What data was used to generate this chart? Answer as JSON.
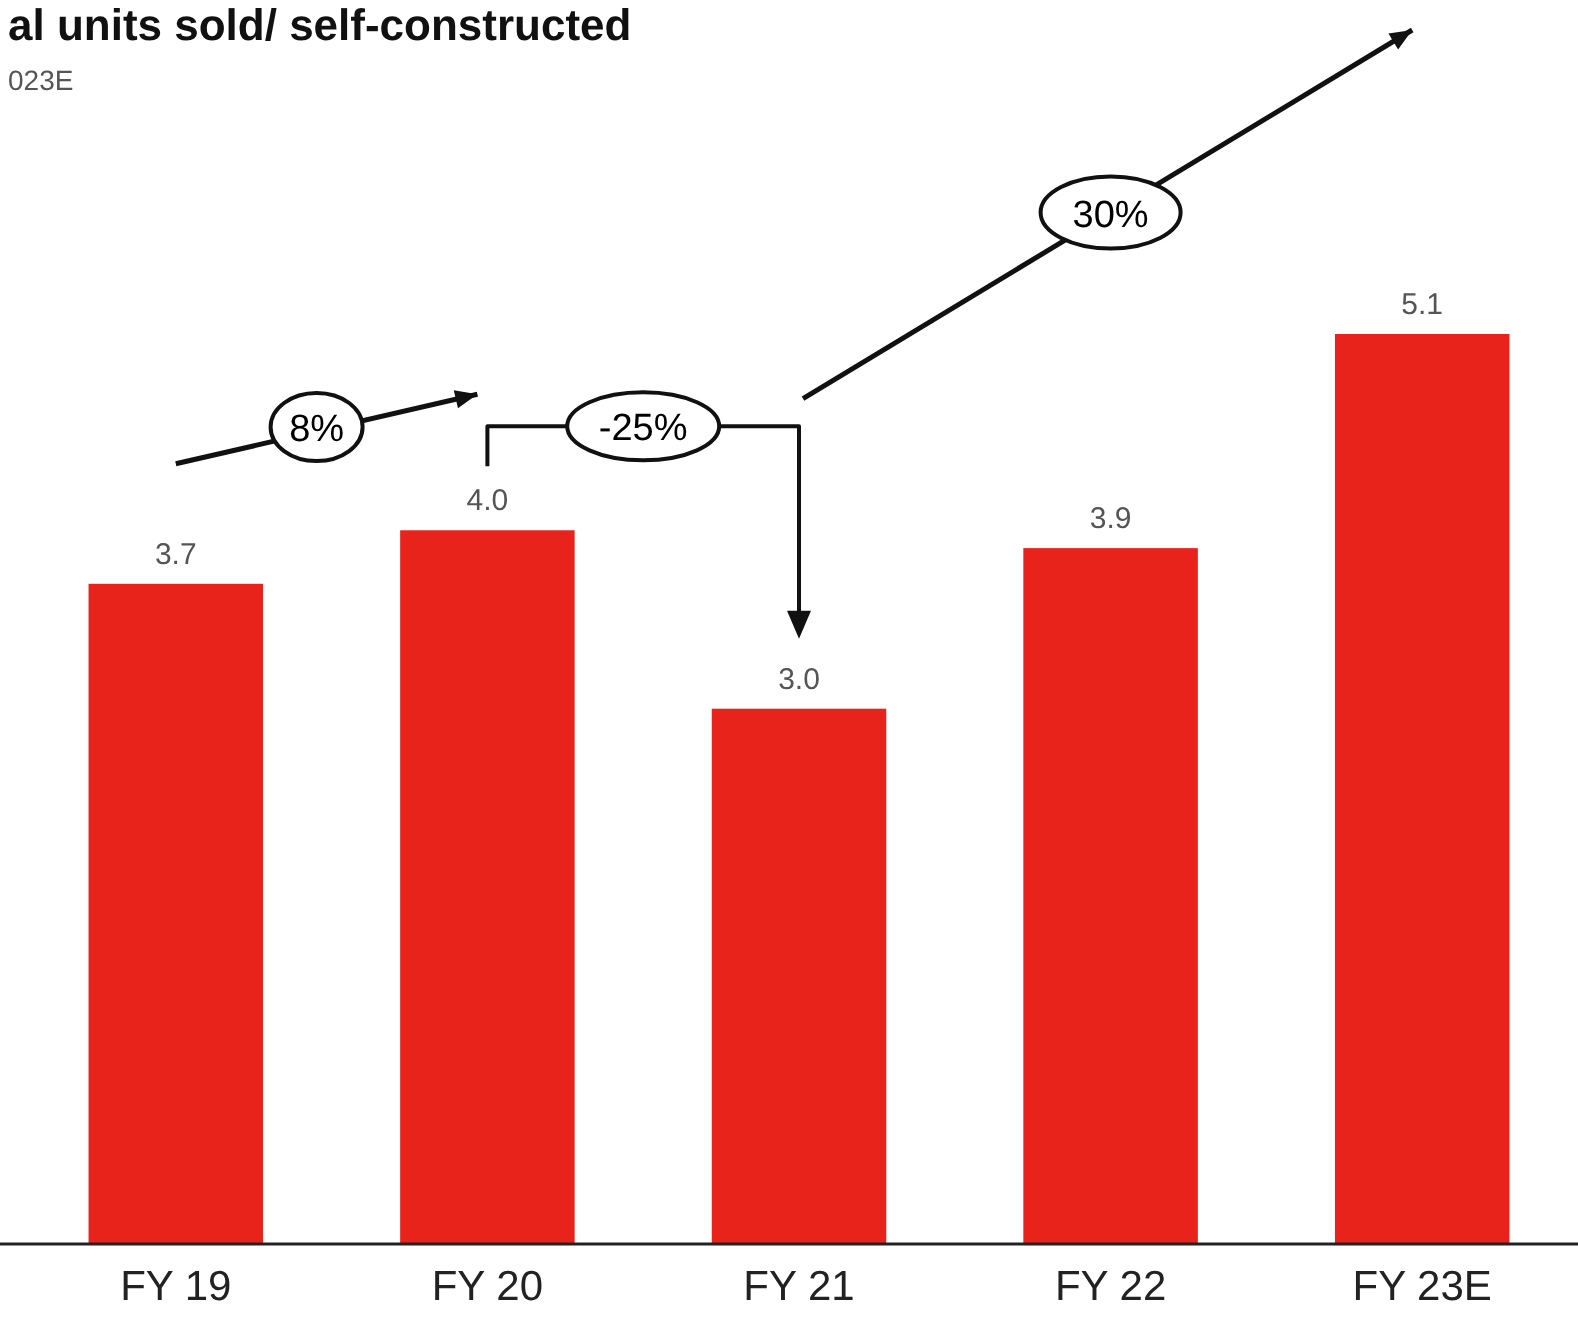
{
  "chart_data": {
    "type": "bar",
    "title": "al units sold/ self-constructed",
    "subtitle": "023E",
    "categories": [
      "FY 19",
      "FY 20",
      "FY 21",
      "FY 22",
      "FY 23E"
    ],
    "values": [
      3.7,
      4.0,
      3.0,
      3.9,
      5.1
    ],
    "color": "#e8231c",
    "value_labels": [
      "3.7",
      "4.0",
      "3.0",
      "3.9",
      "5.1"
    ],
    "annotations": [
      "8%",
      "-25%",
      "30%"
    ]
  }
}
